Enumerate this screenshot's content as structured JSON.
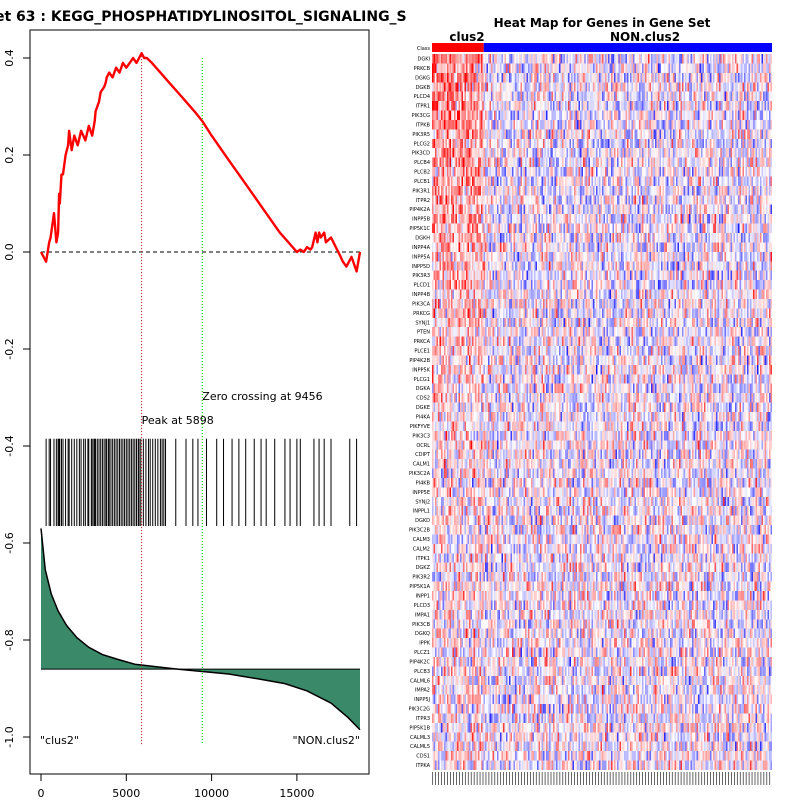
{
  "colors": {
    "es_curve": "#ff0000",
    "peak_line": "#c00000",
    "zero_line": "#00dd00",
    "metric_fill": "#3a8a6a",
    "class_group1": "#ff0000",
    "class_group2": "#0000ff",
    "heat_high": "#ff0000",
    "heat_low": "#0000ff"
  },
  "chart_data": [
    {
      "type": "line",
      "title": "et 63 : KEGG_PHOSPHATIDYLINOSITOL_SIGNALING_S",
      "xlim": [
        0,
        18700
      ],
      "ylim": [
        -1.0,
        0.4
      ],
      "x_ticks": [
        0,
        5000,
        10000,
        15000
      ],
      "x_tick_labels": [
        "0",
        "5000",
        "10000",
        "15000"
      ],
      "y_ticks": [
        0.4,
        0.2,
        0.0,
        -0.2,
        -0.4,
        -0.6,
        -0.8,
        -1.0
      ],
      "y_tick_labels": [
        "0.4",
        "0.2",
        "0.0",
        "-0.2",
        "-0.4",
        "-0.6",
        "-0.8",
        "-1.0"
      ],
      "series": [
        {
          "name": "running enrichment score",
          "x": [
            0,
            300,
            480,
            560,
            760,
            900,
            1000,
            1060,
            1100,
            1200,
            1290,
            1440,
            1590,
            1650,
            1800,
            1950,
            2150,
            2350,
            2600,
            2800,
            3000,
            3150,
            3200,
            3400,
            3500,
            3700,
            3800,
            3850,
            4000,
            4200,
            4400,
            4600,
            4800,
            5000,
            5200,
            5400,
            5600,
            5750,
            5898,
            6050,
            6200,
            6500,
            7000,
            7500,
            8000,
            8500,
            9000,
            9456,
            10000,
            11000,
            12000,
            13000,
            14000,
            14500,
            15000,
            15200,
            15400,
            15600,
            15800,
            15900,
            16100,
            16200,
            16300,
            16400,
            16600,
            16700,
            17000,
            17500,
            17700,
            17900,
            18200,
            18500,
            18700
          ],
          "y": [
            0.0,
            -0.02,
            0.02,
            0.03,
            0.08,
            0.02,
            0.04,
            0.12,
            0.1,
            0.16,
            0.16,
            0.2,
            0.22,
            0.25,
            0.21,
            0.24,
            0.22,
            0.25,
            0.23,
            0.26,
            0.24,
            0.27,
            0.29,
            0.31,
            0.33,
            0.34,
            0.35,
            0.36,
            0.37,
            0.36,
            0.38,
            0.37,
            0.39,
            0.38,
            0.39,
            0.4,
            0.39,
            0.4,
            0.41,
            0.4,
            0.4,
            0.39,
            0.37,
            0.35,
            0.33,
            0.31,
            0.29,
            0.27,
            0.24,
            0.19,
            0.14,
            0.09,
            0.04,
            0.02,
            0.0,
            0.005,
            0.0,
            0.01,
            0.005,
            0.01,
            0.04,
            0.02,
            0.04,
            0.03,
            0.04,
            0.02,
            0.03,
            -0.005,
            -0.02,
            -0.03,
            -0.01,
            -0.04,
            0.0
          ]
        }
      ],
      "baseline_y": 0.0,
      "peak": {
        "x": 5898,
        "label": "Peak at 5898"
      },
      "zero_crossing": {
        "x": 9456,
        "label": "Zero crossing at 9456"
      },
      "hit_positions": [
        300,
        480,
        560,
        760,
        900,
        1000,
        1060,
        1100,
        1200,
        1290,
        1440,
        1590,
        1650,
        1800,
        1950,
        2100,
        2250,
        2350,
        2500,
        2600,
        2750,
        2800,
        2950,
        3000,
        3100,
        3150,
        3200,
        3300,
        3400,
        3500,
        3600,
        3700,
        3800,
        3850,
        3950,
        4000,
        4100,
        4200,
        4300,
        4400,
        4500,
        4600,
        4700,
        4800,
        4900,
        5000,
        5100,
        5200,
        5300,
        5400,
        5500,
        5600,
        5700,
        5750,
        5850,
        6000,
        6150,
        6300,
        6400,
        6550,
        6700,
        6850,
        7000,
        7100,
        7200,
        7300,
        7900,
        8500,
        8900,
        9200,
        9700,
        10300,
        10700,
        11200,
        11600,
        12000,
        12500,
        12900,
        13200,
        13700,
        14300,
        14600,
        15000,
        15200,
        16000,
        16300,
        16600,
        17000,
        18100,
        18500
      ],
      "ranked_metric": {
        "y_levels": [
          -0.57,
          -0.655,
          -0.705,
          -0.74,
          -0.77,
          -0.795,
          -0.815,
          -0.83,
          -0.84,
          -0.85,
          -0.855,
          -0.86,
          -0.865,
          -0.87,
          -0.88,
          -0.89,
          -0.905,
          -0.93,
          -0.96,
          -0.985
        ],
        "baseline_y": -0.86,
        "x_positions": [
          0,
          250,
          600,
          1000,
          1500,
          2100,
          2800,
          3600,
          4500,
          5500,
          6700,
          8000,
          9456,
          11000,
          12700,
          14300,
          15600,
          17000,
          18000,
          18700
        ]
      },
      "annotations": [
        {
          "text": "\"clus2\"",
          "position": "bottom-left"
        },
        {
          "text": "\"NON.clus2\"",
          "position": "bottom-right"
        }
      ]
    },
    {
      "type": "heatmap",
      "title": "Heat Map for Genes in Gene Set",
      "class_labels": [
        "clus2",
        "NON.clus2"
      ],
      "class_row_label": "Class",
      "class_split_fraction": 0.154,
      "column_count": 230,
      "genes": [
        "DGKI",
        "PRKCB",
        "DGKG",
        "DGKB",
        "PLCD4",
        "ITPR1",
        "PIK3CG",
        "ITPKB",
        "PIK3R5",
        "PLCG2",
        "PIK3CD",
        "PLCB4",
        "PLCB2",
        "PLCB1",
        "PIK3R1",
        "ITPR2",
        "PIP4K2A",
        "INPP5B",
        "PIP5K1C",
        "DGKH",
        "INPP4A",
        "INPP5A",
        "INPP5D",
        "PIK3R3",
        "PLCD1",
        "INPP4B",
        "PIK3CA",
        "PRKCG",
        "SYNJ1",
        "PTEN",
        "PRKCA",
        "PLCE1",
        "PIP4K2B",
        "INPP5K",
        "PLCG1",
        "DGKA",
        "CDS2",
        "DGKE",
        "PI4KA",
        "PIKFYVE",
        "PIK3C3",
        "OCRL",
        "CDIPT",
        "CALM1",
        "PIK3C2A",
        "PI4KB",
        "INPP5E",
        "SYNJ2",
        "INPPL1",
        "DGKD",
        "PIK3C2B",
        "CALM3",
        "CALM2",
        "ITPK1",
        "DGKZ",
        "PIK3R2",
        "PIP5K1A",
        "INPP1",
        "PLCD3",
        "IMPA1",
        "PIK3CB",
        "DGKQ",
        "IPPK",
        "PLCZ1",
        "PIP4K2C",
        "PLCB3",
        "CALML6",
        "IMPA2",
        "INPP5J",
        "PIK3C2G",
        "ITPR3",
        "PIP5K1B",
        "CALML3",
        "CALML5",
        "CDS1",
        "ITPKA"
      ]
    }
  ]
}
